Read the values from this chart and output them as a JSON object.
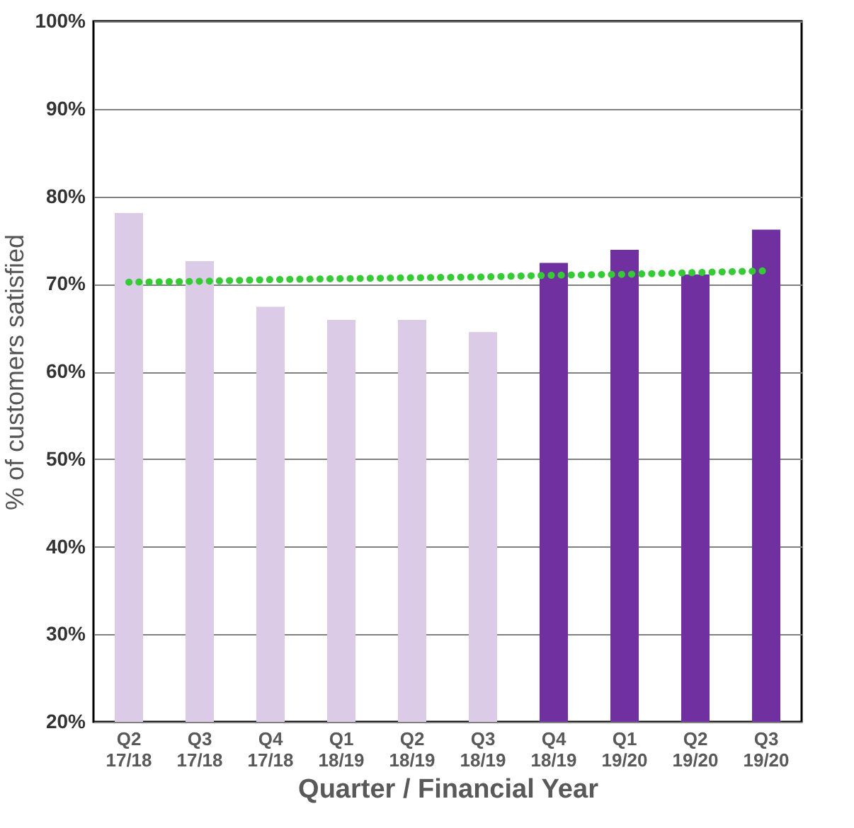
{
  "chart_data": {
    "type": "bar",
    "xlabel": "Quarter / Financial Year",
    "ylabel": "% of customers satisfied",
    "categories": [
      "Q2\n17/18",
      "Q3\n17/18",
      "Q4\n17/18",
      "Q1\n18/19",
      "Q2\n18/19",
      "Q3\n18/19",
      "Q4\n18/19",
      "Q1\n19/20",
      "Q2\n19/20",
      "Q3\n19/20"
    ],
    "series": [
      {
        "values": [
          78.1,
          72.6,
          67.4,
          65.9,
          65.9,
          64.5,
          72.4,
          73.9,
          71.1,
          76.2
        ],
        "colors": [
          "#dccbe6",
          "#dccbe6",
          "#dccbe6",
          "#dccbe6",
          "#dccbe6",
          "#dccbe6",
          "#7030a0",
          "#7030a0",
          "#7030a0",
          "#7030a0"
        ]
      },
      {
        "type": "line",
        "color": "#33cc33",
        "line_style": "dotted",
        "values": [
          70.2,
          70.3,
          70.5,
          70.6,
          70.7,
          70.8,
          71.0,
          71.1,
          71.3,
          71.5
        ]
      }
    ],
    "ylim": [
      20,
      100
    ],
    "yticks": [
      {
        "value": 20,
        "label": "20%"
      },
      {
        "value": 30,
        "label": "30%"
      },
      {
        "value": 40,
        "label": "40%"
      },
      {
        "value": 50,
        "label": "50%"
      },
      {
        "value": 60,
        "label": "60%"
      },
      {
        "value": 70,
        "label": "70%"
      },
      {
        "value": 80,
        "label": "80%"
      },
      {
        "value": 90,
        "label": "90%"
      },
      {
        "value": 100,
        "label": "100%"
      }
    ],
    "grid": "y"
  }
}
